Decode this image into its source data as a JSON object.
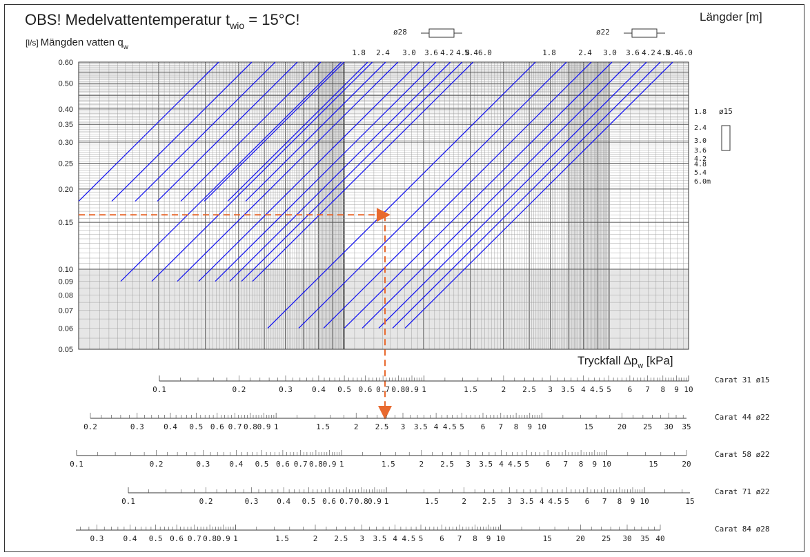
{
  "chart_data": {
    "type": "line",
    "title_main": "OBS! Medelvattentemperatur t",
    "title_sub": "wio",
    "title_tail": " = 15°C!",
    "ylabel_unit": "[l/s]",
    "ylabel_text": "Mängden vatten q",
    "ylabel_sub": "w",
    "lengths_label": "Längder [m]",
    "pressure_label": "Tryckfall ∆p",
    "pressure_sub": "w",
    "pressure_unit": " [kPa]",
    "y_scale": "log",
    "ylim": [
      0.05,
      0.6
    ],
    "y_ticks": [
      "0.60",
      "0.50",
      "0.40",
      "0.35",
      "0.30",
      "0.25",
      "0.20",
      "0.15",
      "0.10",
      "0.09",
      "0.08",
      "0.07",
      "0.06",
      "0.05"
    ],
    "grid": true,
    "series_groups": [
      {
        "name": "ø28",
        "lengths": [
          "1.8",
          "2.4",
          "3.0",
          "3.6",
          "4.2",
          "4.8",
          "5.4",
          "6.0"
        ],
        "y_range": [
          0.18,
          0.6
        ]
      },
      {
        "name": "ø22",
        "lengths": [
          "1.8",
          "2.4",
          "3.0",
          "3.6",
          "4.2",
          "4.8",
          "5.4",
          "6.0"
        ],
        "y_range": [
          0.09,
          0.6
        ]
      },
      {
        "name": "ø15",
        "lengths": [
          "1.8",
          "2.4",
          "3.0",
          "3.6",
          "4.2",
          "4.8",
          "5.4",
          "6.0m"
        ],
        "y_range": [
          0.06,
          0.44
        ]
      }
    ],
    "example": {
      "flow": 0.16,
      "pressure_drop_kpa": 2.6,
      "scale": "Carat 44 ø22",
      "color": "#e8692e"
    },
    "scales": [
      {
        "name": "Carat 31",
        "pipe": "ø15",
        "labels": [
          "0.1",
          "0.2",
          "0.3",
          "0.4",
          "0.5",
          "0.6",
          "0.7",
          "0.8",
          "0.9",
          "1",
          "1.5",
          "2",
          "2.5",
          "3",
          "3.5",
          "4",
          "4.5",
          "5",
          "6",
          "7",
          "8",
          "9",
          "10"
        ]
      },
      {
        "name": "Carat 44",
        "pipe": "ø22",
        "labels": [
          "0.2",
          "0.3",
          "0.4",
          "0.5",
          "0.6",
          "0.7",
          "0.8",
          "0.9",
          "1",
          "1.5",
          "2",
          "2.5",
          "3",
          "3.5",
          "4",
          "4.5",
          "5",
          "6",
          "7",
          "8",
          "9",
          "10",
          "15",
          "20",
          "25",
          "30",
          "35"
        ]
      },
      {
        "name": "Carat 58",
        "pipe": "ø22",
        "labels": [
          "0.1",
          "0.2",
          "0.3",
          "0.4",
          "0.5",
          "0.6",
          "0.7",
          "0.8",
          "0.9",
          "1",
          "1.5",
          "2",
          "2.5",
          "3",
          "3.5",
          "4",
          "4.5",
          "5",
          "6",
          "7",
          "8",
          "9",
          "10",
          "15",
          "20"
        ]
      },
      {
        "name": "Carat 71",
        "pipe": "ø22",
        "labels": [
          "0.1",
          "0.2",
          "0.3",
          "0.4",
          "0.5",
          "0.6",
          "0.7",
          "0.8",
          "0.9",
          "1",
          "1.5",
          "2",
          "2.5",
          "3",
          "3.5",
          "4",
          "4.5",
          "5",
          "6",
          "7",
          "8",
          "9",
          "10",
          "15"
        ]
      },
      {
        "name": "Carat 84",
        "pipe": "ø28",
        "labels": [
          "0.3",
          "0.4",
          "0.5",
          "0.6",
          "0.7",
          "0.8",
          "0.9",
          "1",
          "1.5",
          "2",
          "2.5",
          "3",
          "3.5",
          "4",
          "4.5",
          "5",
          "6",
          "7",
          "8",
          "9",
          "10",
          "15",
          "20",
          "25",
          "30",
          "35",
          "40"
        ]
      }
    ]
  },
  "colors": {
    "lines": "#1a1aef",
    "example": "#e8692e",
    "grid_dark": "#555555",
    "grid_light": "#9a9a9a",
    "shade": "#dcdcdc"
  }
}
